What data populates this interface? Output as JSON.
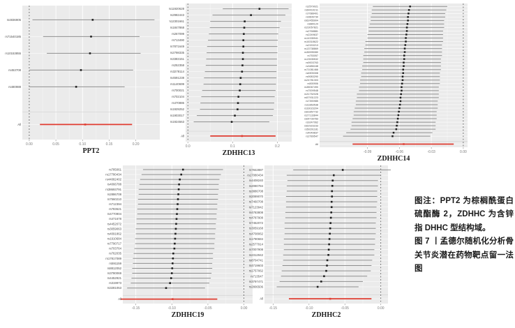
{
  "figure": {
    "note": "图注：PPT2 为棕榈酰蛋白硫酯酶 2，ZDHHC 为含锌指 DHHC 型结构域。",
    "caption": "图 7 丨孟德尔随机化分析骨关节炎潜在药物靶点留一法图"
  },
  "colors": {
    "panel_bg": "#ebebeb",
    "grid_major": "#ffffff",
    "grid_minor": "#f4f4f4",
    "separator": "#d8d8d8",
    "ci_line": "#8f8f8f",
    "point": "#1f1f1f",
    "all_line": "#e03c31",
    "axis_text": "#7a7a7a",
    "label_text": "#4d4d4d",
    "zero_line": "#5a5a5a",
    "title_text": "#1a1a1a"
  },
  "chart_data": [
    {
      "type": "forest",
      "title": "PPT2",
      "xlabel": "",
      "xlim": [
        -0.013,
        0.245
      ],
      "xticks": [
        0.0,
        0.05,
        0.1,
        0.15,
        0.2
      ],
      "xtick_labels": [
        "0.00",
        "0.05",
        "0.10",
        "0.15",
        "0.20"
      ],
      "zero_line": 0,
      "rows": [
        [
          "rs4836905",
          0.006,
          0.119,
          0.235
        ],
        [
          "rs71540185",
          0.026,
          0.116,
          0.207
        ],
        [
          "rs10153855",
          0.033,
          0.114,
          0.209
        ],
        [
          "rs453708",
          0.0,
          0.097,
          0.195
        ],
        [
          "rs480988",
          -0.001,
          0.088,
          0.179
        ]
      ],
      "all": [
        "All",
        0.02,
        0.105,
        0.193
      ]
    },
    {
      "type": "forest",
      "title": "ZDHHC13",
      "xlabel": "",
      "xlim": [
        -0.005,
        0.232
      ],
      "xticks": [
        0.0,
        0.1,
        0.2
      ],
      "xtick_labels": [
        "0.0",
        "0.1",
        "0.2"
      ],
      "zero_line": 0,
      "rows": [
        [
          "rs11920628",
          0.078,
          0.16,
          0.225
        ],
        [
          "rs2982443",
          0.055,
          0.141,
          0.218
        ],
        [
          "rs12301661",
          0.05,
          0.127,
          0.208
        ],
        [
          "rs1847868",
          0.049,
          0.126,
          0.205
        ],
        [
          "rs267099",
          0.047,
          0.125,
          0.202
        ],
        [
          "rs713490",
          0.045,
          0.124,
          0.201
        ],
        [
          "rs7871649",
          0.043,
          0.124,
          0.2
        ],
        [
          "rs2798335",
          0.042,
          0.123,
          0.2
        ],
        [
          "rs3383151",
          0.041,
          0.123,
          0.199
        ],
        [
          "rs252358",
          0.04,
          0.122,
          0.199
        ],
        [
          "rs3278114",
          0.038,
          0.121,
          0.198
        ],
        [
          "rs4591238",
          0.036,
          0.118,
          0.198
        ],
        [
          "rs1140699",
          0.035,
          0.117,
          0.197
        ],
        [
          "rs700021",
          0.032,
          0.116,
          0.196
        ],
        [
          "rs702104",
          0.03,
          0.113,
          0.194
        ],
        [
          "rs470886",
          0.028,
          0.112,
          0.193
        ],
        [
          "rs1929252",
          0.027,
          0.111,
          0.192
        ],
        [
          "rs1903017",
          0.02,
          0.105,
          0.19
        ],
        [
          "rs1924563",
          0.013,
          0.098,
          0.182
        ]
      ],
      "all": [
        "All",
        0.05,
        0.121,
        0.196
      ]
    },
    {
      "type": "forest",
      "title": "ZDHHC14",
      "xlabel": "",
      "xlim": [
        -0.135,
        0.004
      ],
      "xticks": [
        -0.09,
        -0.06,
        -0.03,
        0.0
      ],
      "xtick_labels": [
        "-0.09",
        "-0.06",
        "-0.03",
        "0.00"
      ],
      "zero_line": 0,
      "rows": [
        [
          "rs2579021",
          -0.085,
          -0.05,
          -0.015
        ],
        [
          "rs64410211",
          -0.086,
          -0.051,
          -0.016
        ],
        [
          "rs7088401",
          -0.086,
          -0.0515,
          -0.017
        ],
        [
          "rs9606730",
          -0.087,
          -0.052,
          -0.017
        ],
        [
          "rs62455904",
          -0.087,
          -0.052,
          -0.018
        ],
        [
          "rs884124",
          -0.088,
          -0.0525,
          -0.018
        ],
        [
          "rs23057821",
          -0.089,
          -0.053,
          -0.018
        ],
        [
          "rs2768881",
          -0.089,
          -0.053,
          -0.019
        ],
        [
          "rs2249637",
          -0.09,
          -0.0535,
          -0.019
        ],
        [
          "rs14335941",
          -0.09,
          -0.054,
          -0.019
        ],
        [
          "rs16318622",
          -0.092,
          -0.054,
          -0.019
        ],
        [
          "rs2153213",
          -0.092,
          -0.0545,
          -0.02
        ],
        [
          "rs13738869",
          -0.093,
          -0.055,
          -0.02
        ],
        [
          "rs36595080",
          -0.093,
          -0.055,
          -0.02
        ],
        [
          "rs753057",
          -0.094,
          -0.0555,
          -0.02
        ],
        [
          "rs13535532",
          -0.094,
          -0.0555,
          -0.021
        ],
        [
          "rs9003763",
          -0.094,
          -0.056,
          -0.021
        ],
        [
          "rs3486168",
          -0.095,
          -0.056,
          -0.021
        ],
        [
          "rs71081466",
          -0.095,
          -0.0565,
          -0.021
        ],
        [
          "rs6905308",
          -0.096,
          -0.0565,
          -0.022
        ],
        [
          "rs9083290",
          -0.096,
          -0.057,
          -0.022
        ],
        [
          "rs24781303",
          -0.097,
          -0.057,
          -0.022
        ],
        [
          "rs500906",
          -0.097,
          -0.0575,
          -0.022
        ],
        [
          "rs38067490",
          -0.098,
          -0.058,
          -0.023
        ],
        [
          "rs7009548",
          -0.098,
          -0.058,
          -0.023
        ],
        [
          "rs31752028",
          -0.1,
          -0.0585,
          -0.023
        ],
        [
          "rs57931223",
          -0.1,
          -0.059,
          -0.023
        ],
        [
          "rs7390985",
          -0.101,
          -0.059,
          -0.024
        ],
        [
          "rs11863538",
          -0.101,
          -0.0595,
          -0.024
        ],
        [
          "rs33023204",
          -0.102,
          -0.06,
          -0.024
        ],
        [
          "rs81857732",
          -0.103,
          -0.0605,
          -0.025
        ],
        [
          "rs27133844",
          -0.103,
          -0.061,
          -0.025
        ],
        [
          "rs64739783",
          -0.104,
          -0.0615,
          -0.025
        ],
        [
          "rs9247062",
          -0.105,
          -0.062,
          -0.026
        ],
        [
          "rs62923233",
          -0.105,
          -0.0625,
          -0.026
        ],
        [
          "rs50291181",
          -0.106,
          -0.063,
          -0.026
        ],
        [
          "rs4049837",
          -0.11,
          -0.0655,
          -0.029
        ],
        [
          "rs2789547",
          -0.113,
          -0.0665,
          -0.031
        ]
      ],
      "all": [
        "All",
        -0.104,
        -0.056,
        -0.009
      ]
    },
    {
      "type": "forest",
      "title": "ZDHHC19",
      "xlabel": "",
      "xlim": [
        -0.168,
        0.012
      ],
      "xticks": [
        -0.15,
        -0.1,
        -0.05,
        0.0
      ],
      "xtick_labels": [
        "-0.15",
        "-0.10",
        "-0.05",
        "0.00"
      ],
      "zero_line": 0,
      "rows": [
        [
          "rs785061",
          -0.14,
          -0.0845,
          -0.029
        ],
        [
          "rs17780434",
          -0.142,
          -0.087,
          -0.032
        ],
        [
          "rs44082402",
          -0.144,
          -0.089,
          -0.034
        ],
        [
          "rs4066788",
          -0.145,
          -0.09,
          -0.035
        ],
        [
          "rs38693791",
          -0.146,
          -0.0905,
          -0.035
        ],
        [
          "rs2886708",
          -0.146,
          -0.091,
          -0.036
        ],
        [
          "rs7560210",
          -0.147,
          -0.0915,
          -0.036
        ],
        [
          "rs712394",
          -0.147,
          -0.092,
          -0.037
        ],
        [
          "rs783621",
          -0.148,
          -0.0925,
          -0.037
        ],
        [
          "rs4770904",
          -0.148,
          -0.093,
          -0.038
        ],
        [
          "rs471678",
          -0.149,
          -0.0935,
          -0.038
        ],
        [
          "rs4452072",
          -0.149,
          -0.094,
          -0.039
        ],
        [
          "rs3059063",
          -0.15,
          -0.0945,
          -0.039
        ],
        [
          "rs4091862",
          -0.15,
          -0.095,
          -0.04
        ],
        [
          "rs1910684",
          -0.151,
          -0.0955,
          -0.04
        ],
        [
          "rs7790717",
          -0.151,
          -0.096,
          -0.041
        ],
        [
          "rs703764",
          -0.152,
          -0.0965,
          -0.041
        ],
        [
          "rs762035",
          -0.153,
          -0.098,
          -0.043
        ],
        [
          "rs17817089",
          -0.154,
          -0.0985,
          -0.043
        ],
        [
          "rs591159",
          -0.154,
          -0.099,
          -0.044
        ],
        [
          "rs8812052",
          -0.155,
          -0.0995,
          -0.044
        ],
        [
          "rs3780069",
          -0.155,
          -0.1,
          -0.045
        ],
        [
          "rs4452921",
          -0.156,
          -0.101,
          -0.046
        ],
        [
          "rs319973",
          -0.157,
          -0.1025,
          -0.048
        ],
        [
          "rs3281053",
          -0.162,
          -0.108,
          -0.054
        ]
      ],
      "all": [
        "All",
        -0.171,
        -0.099,
        -0.037
      ]
    },
    {
      "type": "forest",
      "title": "ZDHHC2",
      "xlabel": "",
      "xlim": [
        -0.162,
        0.01
      ],
      "xticks": [
        -0.15,
        -0.1,
        -0.05,
        0.0
      ],
      "xtick_labels": [
        "-0.15",
        "-0.10",
        "-0.05",
        "0.00"
      ],
      "zero_line": 0,
      "rows": [
        [
          "rs7842887",
          -0.122,
          -0.053,
          0.016
        ],
        [
          "rs17080434",
          -0.131,
          -0.0655,
          0.0
        ],
        [
          "rs4408240",
          -0.13,
          -0.067,
          -0.004
        ],
        [
          "rs2080784",
          -0.131,
          -0.0675,
          -0.004
        ],
        [
          "rs3886708",
          -0.131,
          -0.068,
          -0.005
        ],
        [
          "rs2089070",
          -0.132,
          -0.068,
          -0.005
        ],
        [
          "rs7460708",
          -0.132,
          -0.0685,
          -0.005
        ],
        [
          "rs7123942",
          -0.132,
          -0.0685,
          -0.006
        ],
        [
          "rs4783808",
          -0.133,
          -0.069,
          -0.006
        ],
        [
          "rs4787908",
          -0.133,
          -0.0695,
          -0.006
        ],
        [
          "rs7452072",
          -0.134,
          -0.07,
          -0.007
        ],
        [
          "rs3059168",
          -0.134,
          -0.0705,
          -0.007
        ],
        [
          "rs4708062",
          -0.134,
          -0.071,
          -0.007
        ],
        [
          "rs1790684",
          -0.135,
          -0.0715,
          -0.008
        ],
        [
          "rs2577914",
          -0.135,
          -0.072,
          -0.008
        ],
        [
          "rs7007908",
          -0.135,
          -0.0725,
          -0.009
        ],
        [
          "rs2312942",
          -0.136,
          -0.073,
          -0.009
        ],
        [
          "rs8704741",
          -0.136,
          -0.0745,
          -0.012
        ],
        [
          "rs4719603",
          -0.137,
          -0.075,
          -0.013
        ],
        [
          "rs1757062",
          -0.138,
          -0.076,
          -0.014
        ],
        [
          "rs713547",
          -0.139,
          -0.079,
          -0.019
        ],
        [
          "rs3797471",
          -0.141,
          -0.083,
          -0.025
        ],
        [
          "rs2806506",
          -0.145,
          -0.088,
          -0.031
        ]
      ],
      "all": [
        "All",
        -0.128,
        -0.0705,
        -0.013
      ]
    }
  ]
}
